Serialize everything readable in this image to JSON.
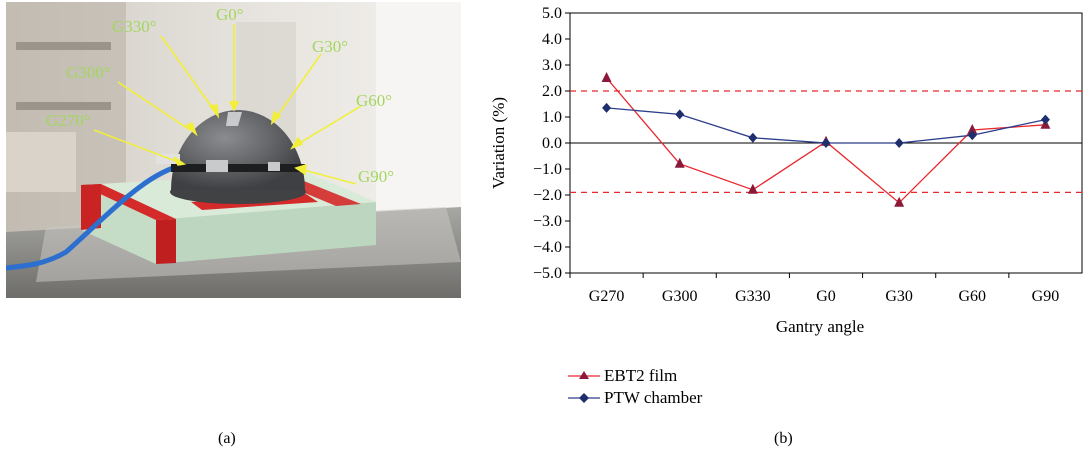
{
  "panels": {
    "a_label": "(a)",
    "b_label": "(b)"
  },
  "photo": {
    "angle_labels": [
      "G0°",
      "G30°",
      "G60°",
      "G90°",
      "G330°",
      "G300°",
      "G270°"
    ],
    "label_color": "#a4d65e",
    "arrow_color": "#f2ef3a",
    "phantom_color": "#5f6164"
  },
  "chart_data": {
    "type": "line",
    "categories": [
      "G270",
      "G300",
      "G330",
      "G0",
      "G30",
      "G60",
      "G90"
    ],
    "xlabel": "Gantry angle",
    "ylabel": "Variation (%)",
    "ylim": [
      -5.0,
      5.0
    ],
    "ytick_labels": [
      "5.0",
      "4.0",
      "3.0",
      "2.0",
      "1.0",
      "0.0",
      "−1.0",
      "−2.0",
      "−3.0",
      "−4.0",
      "−5.0"
    ],
    "yticks": [
      5,
      4,
      3,
      2,
      1,
      0,
      -1,
      -2,
      -3,
      -4,
      -5
    ],
    "series": [
      {
        "name": "EBT2 film",
        "values": [
          2.5,
          -0.8,
          -1.8,
          0.05,
          -2.3,
          0.5,
          0.7
        ],
        "color": "#e8262c",
        "marker": "triangle"
      },
      {
        "name": "PTW chamber",
        "values": [
          1.35,
          1.1,
          0.2,
          0.0,
          0.0,
          0.3,
          0.9
        ],
        "color": "#2c3e8c",
        "marker": "diamond"
      }
    ],
    "reference_lines": [
      2.0,
      -1.9
    ],
    "reference_color": "#e8262c",
    "grid": false,
    "legend_position": "bottom"
  }
}
